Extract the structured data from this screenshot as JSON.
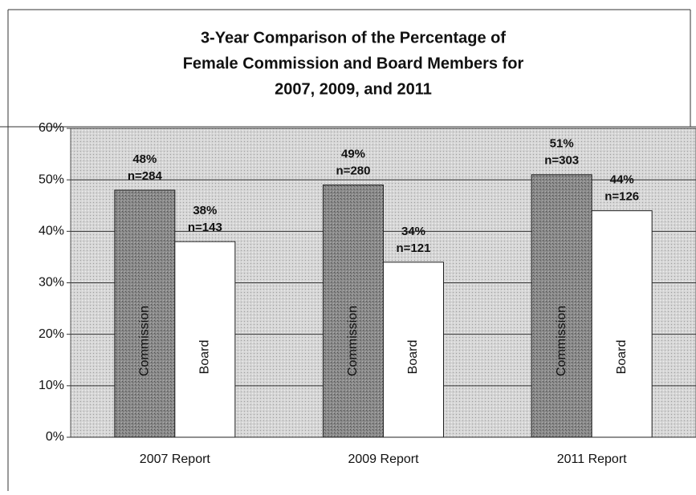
{
  "chart_data": {
    "type": "bar",
    "title": [
      "3-Year Comparison of the Percentage of",
      "Female Commission and Board Members for",
      "2007, 2009, and 2011"
    ],
    "categories": [
      "2007 Report",
      "2009 Report",
      "2011 Report"
    ],
    "series": [
      {
        "name": "Commission",
        "color": "#8c8c8c",
        "values": [
          48,
          49,
          51
        ],
        "value_labels": [
          "48%",
          "49%",
          "51%"
        ],
        "n_labels": [
          "n=284",
          "n=280",
          "n=303"
        ]
      },
      {
        "name": "Board",
        "color": "#ffffff",
        "values": [
          38,
          34,
          44
        ],
        "value_labels": [
          "38%",
          "34%",
          "44%"
        ],
        "n_labels": [
          "n=143",
          "n=121",
          "n=126"
        ]
      }
    ],
    "ylim": [
      0,
      60
    ],
    "yticks": [
      {
        "value": 0,
        "label": "0%"
      },
      {
        "value": 10,
        "label": "10%"
      },
      {
        "value": 20,
        "label": "20%"
      },
      {
        "value": 30,
        "label": "30%"
      },
      {
        "value": 40,
        "label": "40%"
      },
      {
        "value": 50,
        "label": "50%"
      },
      {
        "value": 60,
        "label": "60%"
      }
    ],
    "grid": true
  }
}
